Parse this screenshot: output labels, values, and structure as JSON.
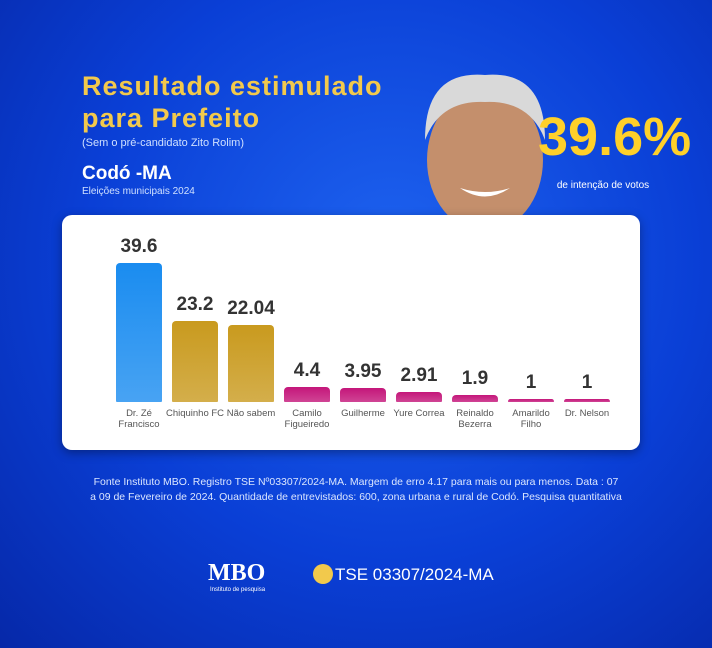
{
  "chart_data": {
    "type": "bar",
    "title": [
      "Resultado estimulado",
      "para Prefeito"
    ],
    "subtitle": "(Sem o pré-candidato Zito Rolim)",
    "place": "Codó -MA",
    "election": "Eleições municipais 2024",
    "highlight": {
      "value": 39.6,
      "label": "39.6%"
    },
    "highlight_note": "de intenção de votos",
    "categories": [
      "Dr. Zé Francisco",
      "Chiquinho FC",
      "Não sabem",
      "Camilo Figueiredo",
      "Guilherme",
      "Yure Correa",
      "Reinaldo Bezerra",
      "Amarildo Filho",
      "Dr. Nelson"
    ],
    "values": [
      39.6,
      23.2,
      22.04,
      4.4,
      3.95,
      2.91,
      1.9,
      1,
      1
    ],
    "colors": [
      "#1a8cf0",
      "#c99a1e",
      "#c99a1e",
      "#c4167a",
      "#c4167a",
      "#c4167a",
      "#c4167a",
      "#c4167a",
      "#c4167a"
    ],
    "ylim": [
      0,
      40
    ],
    "source": "Fonte Instituto MBO. Registro TSE Nº03307/2024-MA. Margem de erro 4.17 para mais ou para menos. Data : 07 a 09 de Fevereiro de 2024. Quantidade de entrevistados: 600, zona urbana e rural de Codó. Pesquisa quantitativa",
    "logo": "MBO",
    "logo_sub": "Instituto de pesquisa",
    "registration": "TSE 03307/2024-MA"
  }
}
